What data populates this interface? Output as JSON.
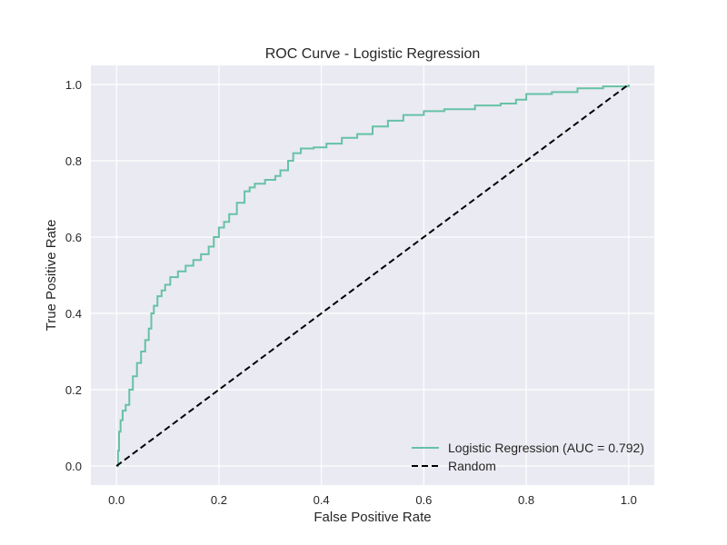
{
  "chart_data": {
    "type": "line",
    "title": "ROC Curve - Logistic Regression",
    "xlabel": "False Positive Rate",
    "ylabel": "True Positive Rate",
    "xlim": [
      -0.05,
      1.05
    ],
    "ylim": [
      -0.05,
      1.05
    ],
    "xticks": [
      0.0,
      0.2,
      0.4,
      0.6,
      0.8,
      1.0
    ],
    "yticks": [
      0.0,
      0.2,
      0.4,
      0.6,
      0.8,
      1.0
    ],
    "xtick_labels": [
      "0.0",
      "0.2",
      "0.4",
      "0.6",
      "0.8",
      "1.0"
    ],
    "ytick_labels": [
      "0.0",
      "0.2",
      "0.4",
      "0.6",
      "0.8",
      "1.0"
    ],
    "grid": true,
    "legend_position": "lower-right",
    "series": [
      {
        "name": "Logistic Regression (AUC = 0.792)",
        "color": "#66c2a5",
        "style": "solid",
        "step": true,
        "x": [
          0.0,
          0.003,
          0.005,
          0.008,
          0.012,
          0.018,
          0.025,
          0.032,
          0.04,
          0.048,
          0.056,
          0.063,
          0.068,
          0.073,
          0.08,
          0.088,
          0.095,
          0.105,
          0.12,
          0.135,
          0.15,
          0.165,
          0.18,
          0.19,
          0.2,
          0.21,
          0.22,
          0.235,
          0.25,
          0.26,
          0.27,
          0.29,
          0.31,
          0.32,
          0.335,
          0.345,
          0.36,
          0.385,
          0.41,
          0.44,
          0.47,
          0.5,
          0.53,
          0.56,
          0.6,
          0.64,
          0.7,
          0.75,
          0.78,
          0.8,
          0.85,
          0.9,
          0.95,
          1.0
        ],
        "y": [
          0.0,
          0.04,
          0.09,
          0.12,
          0.145,
          0.16,
          0.2,
          0.235,
          0.27,
          0.3,
          0.33,
          0.36,
          0.4,
          0.42,
          0.445,
          0.46,
          0.475,
          0.495,
          0.51,
          0.525,
          0.54,
          0.555,
          0.575,
          0.6,
          0.625,
          0.64,
          0.66,
          0.69,
          0.72,
          0.73,
          0.74,
          0.75,
          0.76,
          0.775,
          0.8,
          0.82,
          0.832,
          0.835,
          0.845,
          0.86,
          0.87,
          0.89,
          0.905,
          0.92,
          0.93,
          0.935,
          0.945,
          0.95,
          0.96,
          0.975,
          0.98,
          0.99,
          0.995,
          1.0
        ]
      },
      {
        "name": "Random",
        "color": "#000000",
        "style": "dashed",
        "step": false,
        "x": [
          0.0,
          1.0
        ],
        "y": [
          0.0,
          1.0
        ]
      }
    ]
  }
}
